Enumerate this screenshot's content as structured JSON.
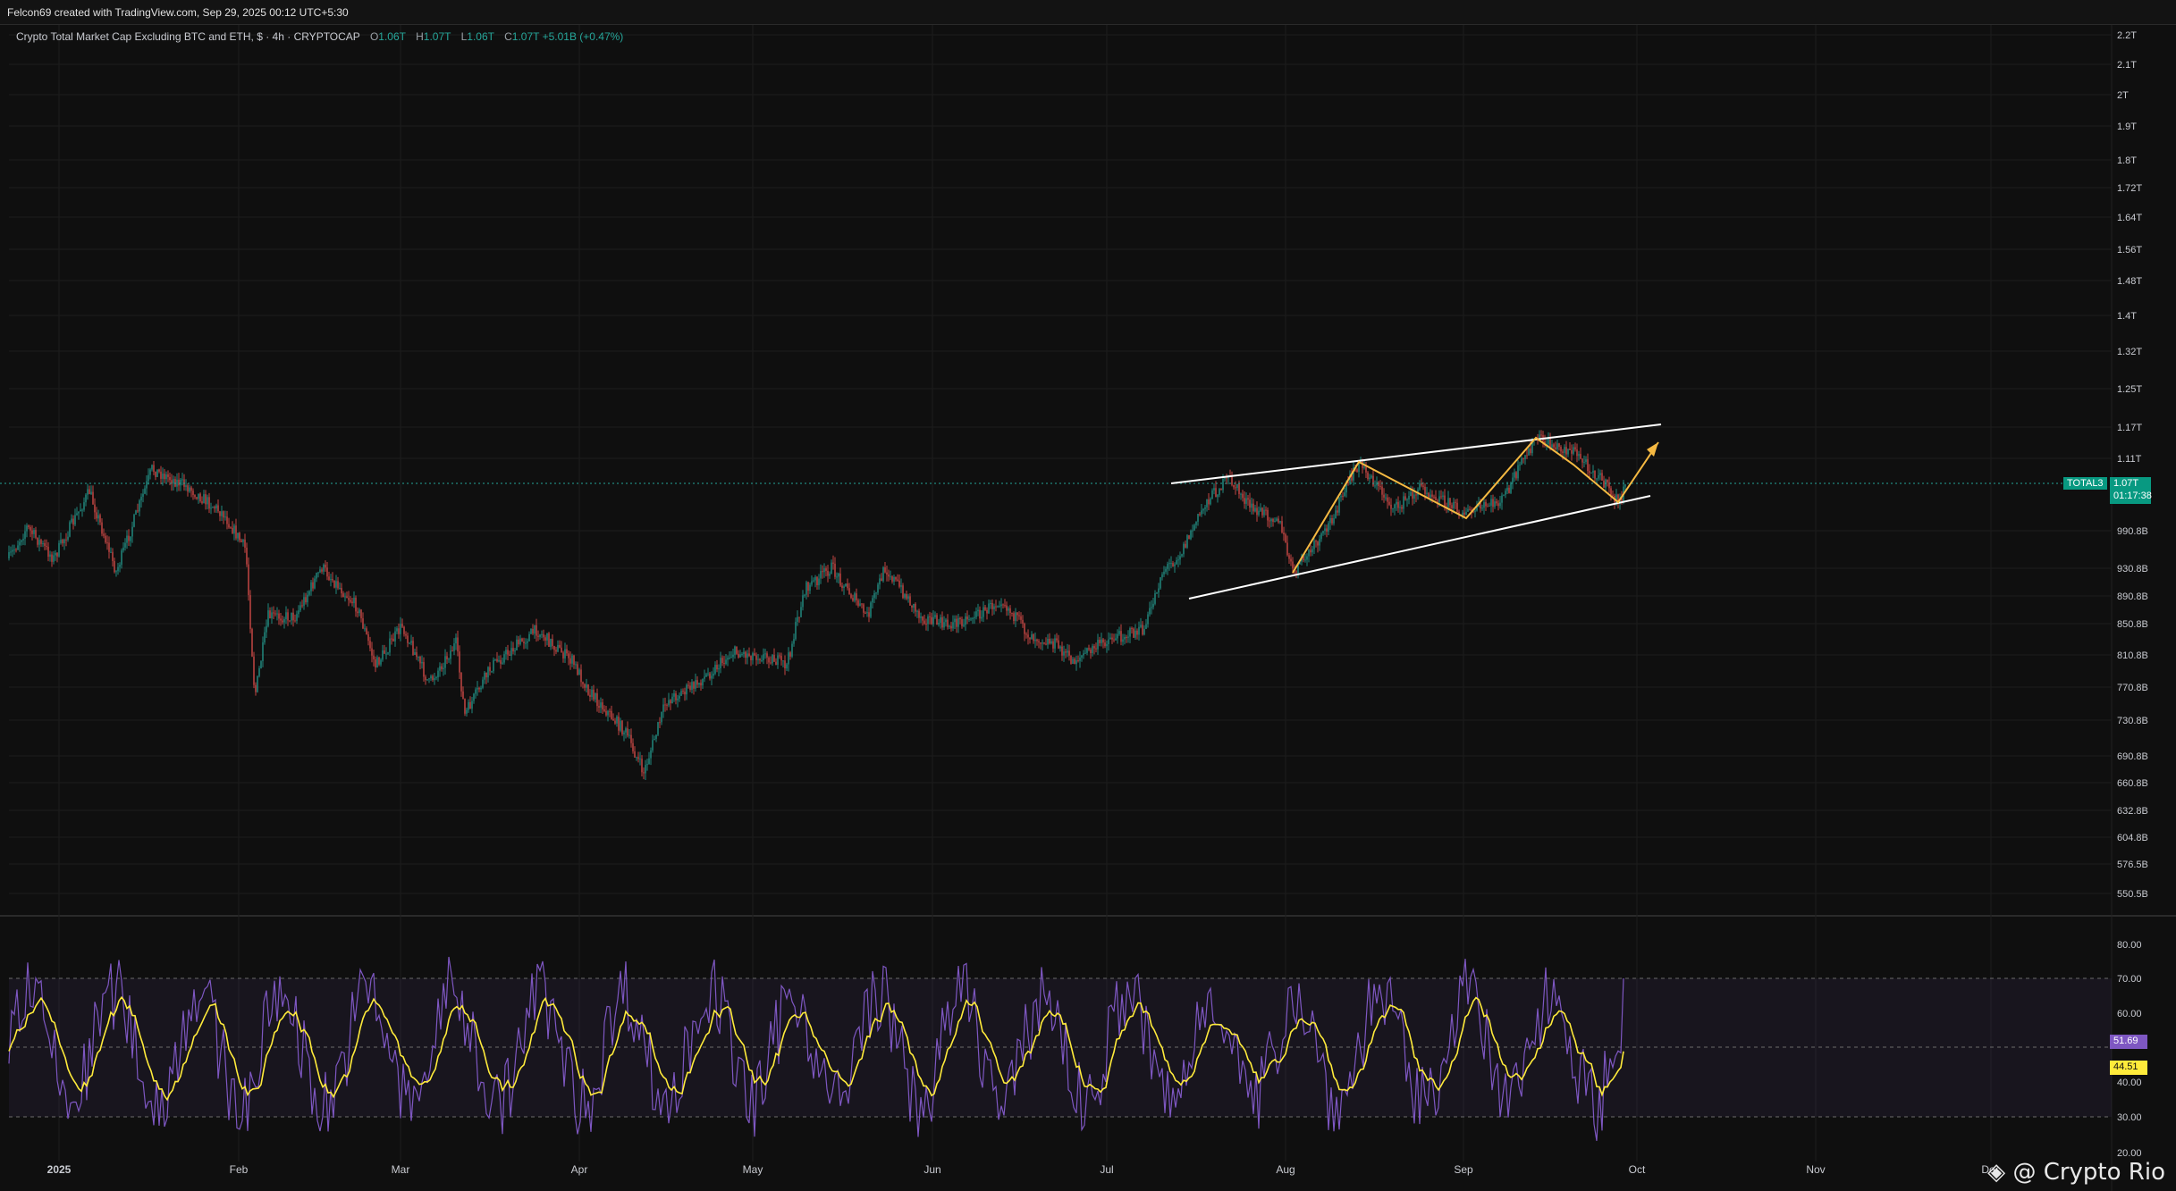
{
  "header": {
    "attribution": "Felcon69 created with TradingView.com, Sep 29, 2025 00:12 UTC+5:30"
  },
  "legend": {
    "title": "Crypto Total Market Cap Excluding BTC and ETH, $ · 4h · CRYPTOCAP",
    "open_label": "O",
    "open_value": "1.06T",
    "high_label": "H",
    "high_value": "1.07T",
    "low_label": "L",
    "low_value": "1.06T",
    "close_label": "C",
    "close_value": "1.07T",
    "change": "+5.01B (+0.47%)"
  },
  "price_axis": {
    "ticks": [
      "2.2T",
      "2.1T",
      "2T",
      "1.9T",
      "1.8T",
      "1.72T",
      "1.64T",
      "1.56T",
      "1.48T",
      "1.4T",
      "1.32T",
      "1.25T",
      "1.17T",
      "1.11T",
      "990.8B",
      "930.8B",
      "890.8B",
      "850.8B",
      "810.8B",
      "770.8B",
      "730.8B",
      "690.8B",
      "660.8B",
      "632.8B",
      "604.8B",
      "576.5B",
      "550.5B"
    ]
  },
  "price_marker": {
    "symbol": "TOTAL3",
    "price": "1.07T",
    "countdown": "01:17:38"
  },
  "rsi_axis": {
    "ticks": [
      "80.00",
      "70.00",
      "60.00",
      "40.00",
      "30.00",
      "20.00"
    ],
    "rsi_value": "51.69",
    "rsi_ma_value": "44.51"
  },
  "time_axis": {
    "labels": [
      "2025",
      "Feb",
      "Mar",
      "Apr",
      "May",
      "Jun",
      "Jul",
      "Aug",
      "Sep",
      "Oct",
      "Nov",
      "Dec"
    ]
  },
  "watermark": {
    "icon": "binance-diamond-icon",
    "text": "@ Crypto Rio"
  },
  "colors": {
    "bull": "#26a69a",
    "bear": "#ef5350",
    "rsi": "#7e57c2",
    "rsi_ma": "#ffeb3b",
    "zigzag": "#f5b942",
    "channel": "#ffffff"
  }
}
